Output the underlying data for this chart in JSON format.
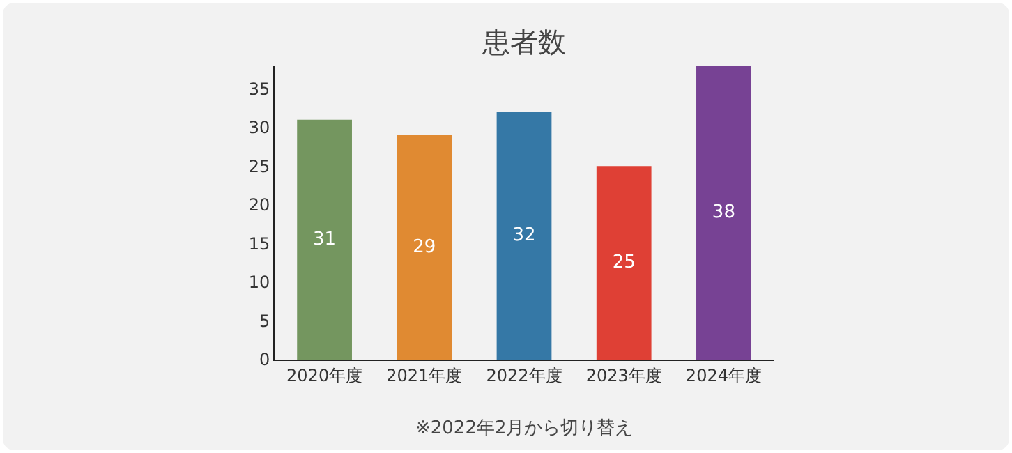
{
  "chart_data": {
    "type": "bar",
    "title": "患者数",
    "categories": [
      "2020年度",
      "2021年度",
      "2022年度",
      "2023年度",
      "2024年度"
    ],
    "values": [
      31,
      29,
      32,
      25,
      38
    ],
    "colors": [
      "#74965f",
      "#e08a32",
      "#3578a6",
      "#df4035",
      "#774294"
    ],
    "ylim": [
      0,
      38
    ],
    "yticks": [
      0,
      5,
      10,
      15,
      20,
      25,
      30,
      35
    ],
    "legend": false,
    "data_labels": true,
    "annotations": [
      "※2022年2月から切り替え"
    ]
  }
}
